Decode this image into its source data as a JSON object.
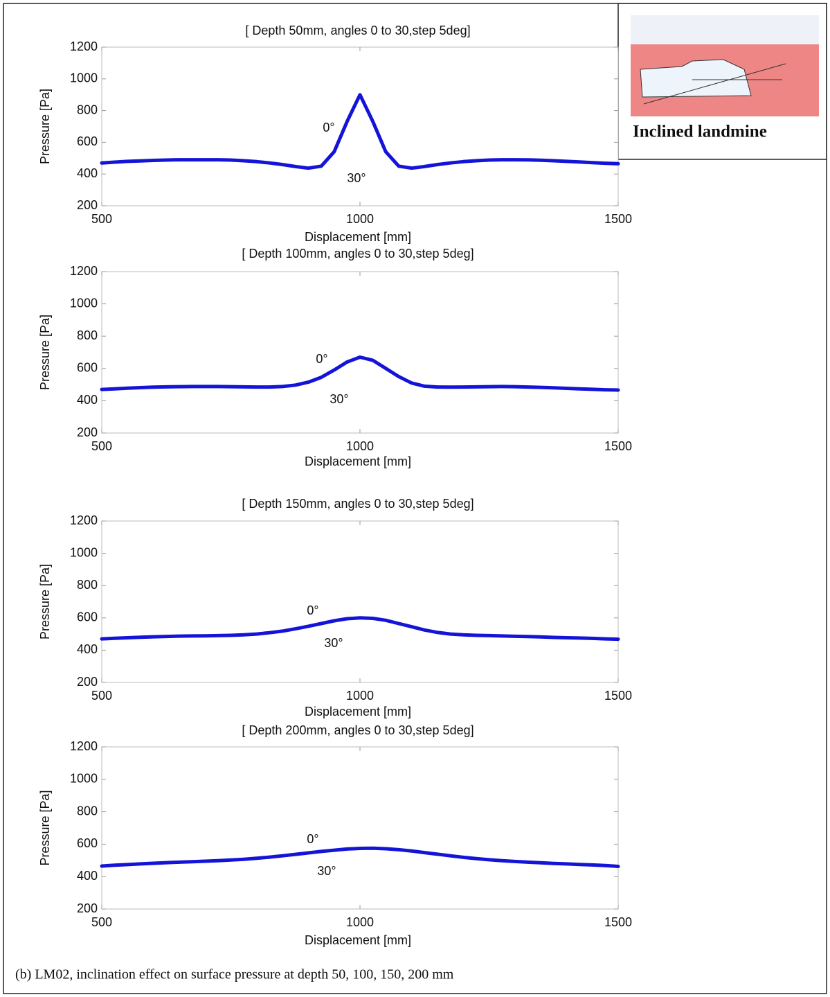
{
  "chart_data": [
    {
      "type": "line",
      "title": "[ Depth 50mm, angles 0 to 30,step 5deg]",
      "xlabel": "Displacement [mm]",
      "ylabel": "Pressure [Pa]",
      "x": [
        500,
        525,
        550,
        575,
        600,
        625,
        650,
        675,
        700,
        725,
        750,
        775,
        800,
        825,
        850,
        875,
        900,
        925,
        950,
        975,
        1000,
        1025,
        1050,
        1075,
        1100,
        1125,
        1150,
        1175,
        1200,
        1225,
        1250,
        1275,
        1300,
        1325,
        1350,
        1375,
        1400,
        1425,
        1450,
        1475,
        1500
      ],
      "series": [
        {
          "color": "#1414d8",
          "values": [
            470,
            475,
            480,
            483,
            486,
            488,
            490,
            490,
            490,
            490,
            488,
            484,
            478,
            470,
            460,
            447,
            437,
            450,
            540,
            730,
            900,
            730,
            540,
            450,
            437,
            447,
            460,
            470,
            478,
            484,
            488,
            490,
            490,
            489,
            487,
            484,
            480,
            476,
            472,
            468,
            465
          ]
        }
      ],
      "xlim": [
        500,
        1500
      ],
      "ylim": [
        200,
        1200
      ],
      "xticks": [
        500,
        1000,
        1500
      ],
      "yticks": [
        200,
        400,
        600,
        800,
        1000,
        1200
      ],
      "annotations": [
        "0°",
        "30°"
      ]
    },
    {
      "type": "line",
      "title": "[ Depth 100mm, angles 0 to 30,step 5deg]",
      "xlabel": "Displacement [mm]",
      "ylabel": "Pressure [Pa]",
      "x": [
        500,
        525,
        550,
        575,
        600,
        625,
        650,
        675,
        700,
        725,
        750,
        775,
        800,
        825,
        850,
        875,
        900,
        925,
        950,
        975,
        1000,
        1025,
        1050,
        1075,
        1100,
        1125,
        1150,
        1175,
        1200,
        1225,
        1250,
        1275,
        1300,
        1325,
        1350,
        1375,
        1400,
        1425,
        1450,
        1475,
        1500
      ],
      "series": [
        {
          "color": "#1414d8",
          "values": [
            470,
            474,
            478,
            481,
            484,
            486,
            487,
            488,
            488,
            488,
            487,
            486,
            485,
            485,
            488,
            497,
            515,
            545,
            590,
            640,
            670,
            650,
            600,
            550,
            510,
            490,
            485,
            484,
            485,
            486,
            487,
            488,
            487,
            485,
            483,
            480,
            477,
            474,
            471,
            468,
            466
          ]
        }
      ],
      "xlim": [
        500,
        1500
      ],
      "ylim": [
        200,
        1200
      ],
      "xticks": [
        500,
        1000,
        1500
      ],
      "yticks": [
        200,
        400,
        600,
        800,
        1000,
        1200
      ],
      "annotations": [
        "0°",
        "30°"
      ]
    },
    {
      "type": "line",
      "title": "[ Depth 150mm, angles 0 to 30,step 5deg]",
      "xlabel": "Displacement [mm]",
      "ylabel": "Pressure [Pa]",
      "x": [
        500,
        525,
        550,
        575,
        600,
        625,
        650,
        675,
        700,
        725,
        750,
        775,
        800,
        825,
        850,
        875,
        900,
        925,
        950,
        975,
        1000,
        1025,
        1050,
        1075,
        1100,
        1125,
        1150,
        1175,
        1200,
        1225,
        1250,
        1275,
        1300,
        1325,
        1350,
        1375,
        1400,
        1425,
        1450,
        1475,
        1500
      ],
      "series": [
        {
          "color": "#1414d8",
          "values": [
            470,
            474,
            477,
            480,
            483,
            485,
            487,
            488,
            489,
            490,
            492,
            495,
            500,
            508,
            518,
            532,
            548,
            565,
            582,
            595,
            600,
            597,
            585,
            565,
            545,
            525,
            510,
            500,
            495,
            492,
            490,
            488,
            486,
            484,
            482,
            479,
            477,
            475,
            473,
            470,
            468
          ]
        }
      ],
      "xlim": [
        500,
        1500
      ],
      "ylim": [
        200,
        1200
      ],
      "xticks": [
        500,
        1000,
        1500
      ],
      "yticks": [
        200,
        400,
        600,
        800,
        1000,
        1200
      ],
      "annotations": [
        "0°",
        "30°"
      ]
    },
    {
      "type": "line",
      "title": "[ Depth 200mm, angles 0 to 30,step 5deg]",
      "xlabel": "Displacement [mm]",
      "ylabel": "Pressure [Pa]",
      "x": [
        500,
        525,
        550,
        575,
        600,
        625,
        650,
        675,
        700,
        725,
        750,
        775,
        800,
        825,
        850,
        875,
        900,
        925,
        950,
        975,
        1000,
        1025,
        1050,
        1075,
        1100,
        1125,
        1150,
        1175,
        1200,
        1225,
        1250,
        1275,
        1300,
        1325,
        1350,
        1375,
        1400,
        1425,
        1450,
        1475,
        1500
      ],
      "series": [
        {
          "color": "#1414d8",
          "values": [
            465,
            470,
            474,
            478,
            482,
            486,
            489,
            492,
            495,
            498,
            502,
            507,
            513,
            520,
            528,
            537,
            546,
            555,
            563,
            570,
            574,
            575,
            572,
            566,
            558,
            548,
            538,
            528,
            519,
            511,
            504,
            498,
            493,
            489,
            485,
            481,
            478,
            475,
            472,
            468,
            463
          ]
        }
      ],
      "xlim": [
        500,
        1500
      ],
      "ylim": [
        200,
        1200
      ],
      "xticks": [
        500,
        1000,
        1500
      ],
      "yticks": [
        200,
        400,
        600,
        800,
        1000,
        1200
      ],
      "annotations": [
        "0°",
        "30°"
      ]
    }
  ],
  "inset": {
    "label": "Inclined landmine"
  },
  "caption": "(b) LM02, inclination effect on surface pressure at depth 50, 100, 150, 200 mm"
}
